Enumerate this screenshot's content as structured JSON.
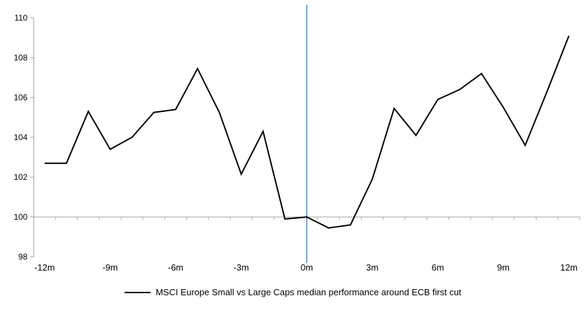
{
  "chart_data": {
    "type": "line",
    "title": "",
    "x": [
      -12,
      -11,
      -10,
      -9,
      -8,
      -7,
      -6,
      -5,
      -4,
      -3,
      -2,
      -1,
      0,
      1,
      2,
      3,
      4,
      5,
      6,
      7,
      8,
      9,
      10,
      11,
      12
    ],
    "x_tick_labels": [
      "-12m",
      "-9m",
      "-6m",
      "-3m",
      "0m",
      "3m",
      "6m",
      "9m",
      "12m"
    ],
    "x_tick_values": [
      -12,
      -9,
      -6,
      -3,
      0,
      3,
      6,
      9,
      12
    ],
    "y_ticks": [
      98,
      100,
      102,
      104,
      106,
      108,
      110
    ],
    "ylim": [
      98,
      110
    ],
    "baseline_value": 100,
    "series": [
      {
        "name": "MSCI Europe Small vs Large Caps median performance around ECB first cut",
        "color": "#000000",
        "values": [
          102.7,
          102.7,
          105.3,
          103.4,
          104.0,
          105.25,
          105.4,
          107.45,
          105.25,
          102.15,
          104.3,
          99.9,
          100.0,
          99.45,
          99.6,
          101.9,
          105.45,
          104.1,
          105.9,
          106.4,
          107.2,
          105.5,
          103.6,
          106.3,
          109.1
        ]
      }
    ],
    "event_line": {
      "x": 0,
      "color": "#7DA7D4"
    },
    "colors": {
      "axis": "#999999",
      "baseline": "#A6A6A6",
      "text": "#000000"
    },
    "legend_position": "bottom",
    "grid": "baseline-only"
  }
}
